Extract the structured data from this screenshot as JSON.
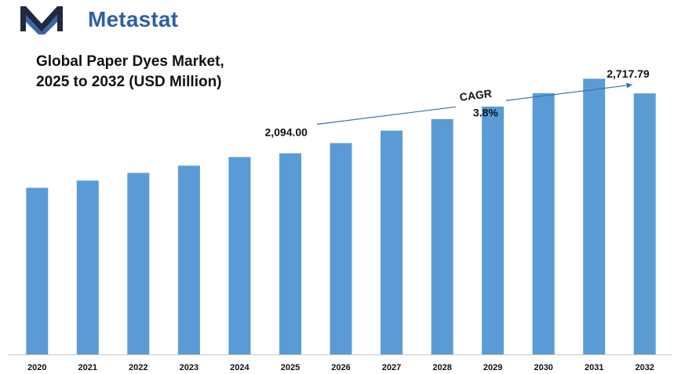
{
  "brand": {
    "name": "Metastat",
    "logo_icon": "metastat-m-logo-icon",
    "color": "#2f5fa8",
    "logo_dark": "#1f2a3c"
  },
  "chart_data": {
    "type": "bar",
    "title_lines": [
      "Global Paper Dyes Market,",
      "2025 to 2032 (USD Million)"
    ],
    "categories": [
      "2020",
      "2021",
      "2022",
      "2023",
      "2024",
      "2025",
      "2026",
      "2027",
      "2028",
      "2029",
      "2030",
      "2031",
      "2032"
    ],
    "values": [
      1735,
      1810,
      1890,
      1965,
      2055,
      2094.0,
      2200,
      2330,
      2450,
      2580,
      2720,
      2870,
      2717.79
    ],
    "bar_color": "#5b9bd5",
    "ylim": [
      0,
      3200
    ],
    "grid": false,
    "legend": "none",
    "annotations": {
      "start_label": "2,094.00",
      "end_label": "2,717.79",
      "cagr_label": "CAGR",
      "cagr_value": "3.8%"
    }
  }
}
